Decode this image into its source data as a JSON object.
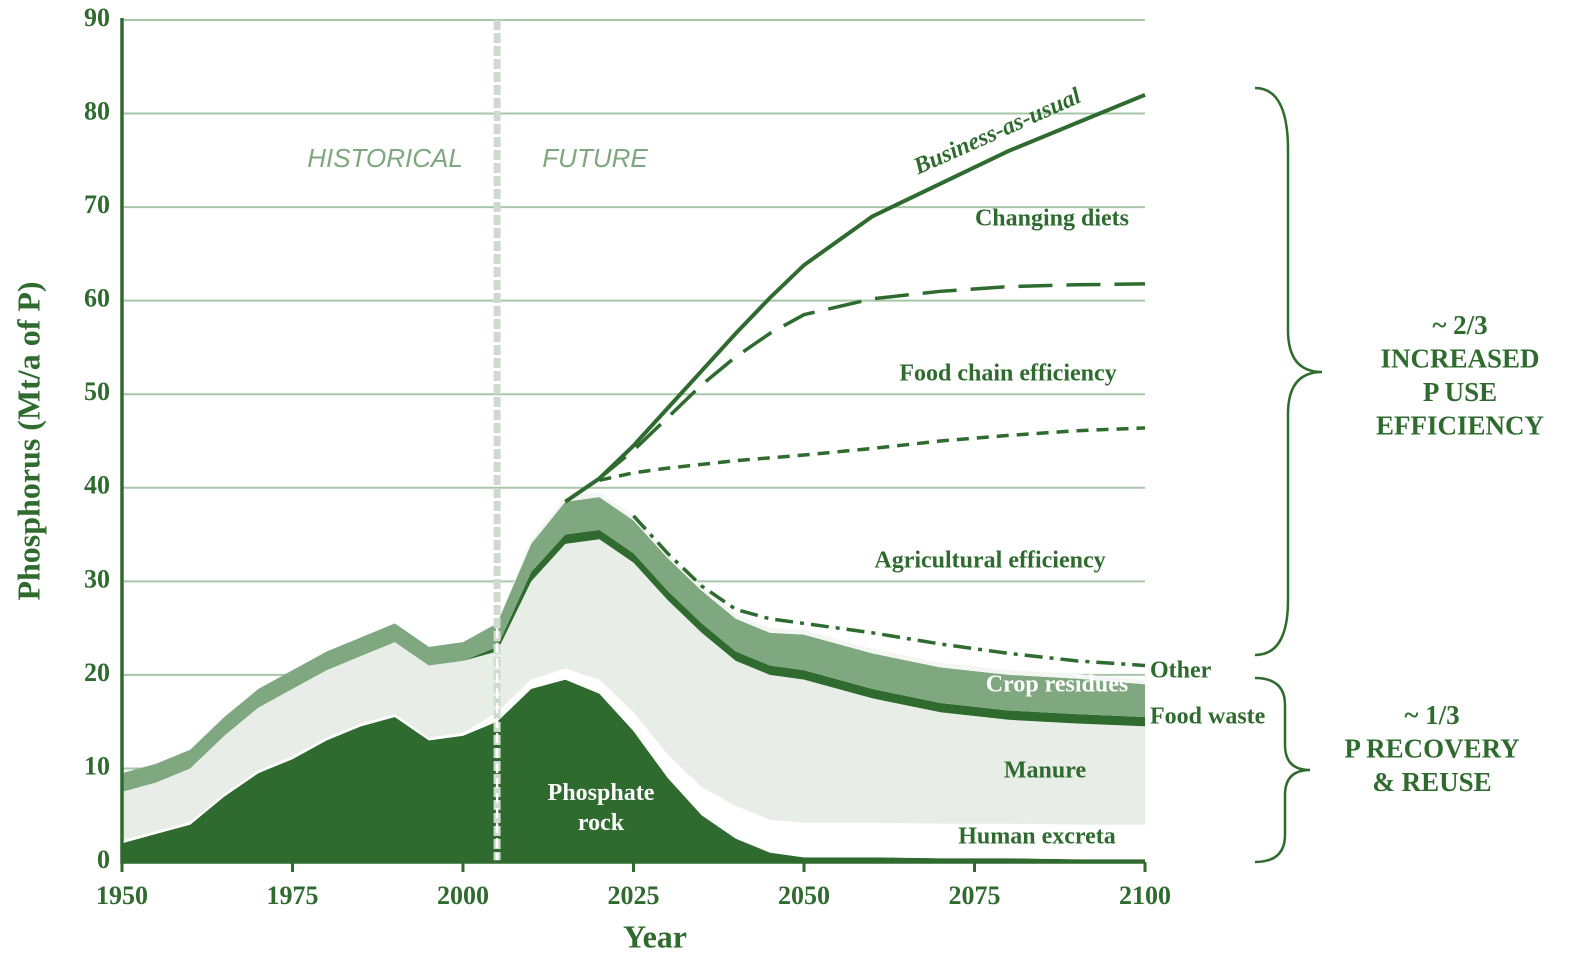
{
  "chart_data": {
    "type": "stacked_area",
    "xlabel": "Year",
    "ylabel": "Phosphorus  (Mt/a of P)",
    "xlim": [
      1950,
      2100
    ],
    "xticks": [
      1950,
      1975,
      2000,
      2025,
      2050,
      2075,
      2100
    ],
    "ylim": [
      0,
      90
    ],
    "yticks": [
      0,
      10,
      20,
      30,
      40,
      50,
      60,
      70,
      80,
      90
    ],
    "grid": true,
    "divider_x": 2005,
    "eras": [
      "HISTORICAL",
      "FUTURE"
    ],
    "x": [
      1950,
      1955,
      1960,
      1965,
      1970,
      1975,
      1980,
      1985,
      1990,
      1995,
      2000,
      2005,
      2010,
      2015,
      2020,
      2025,
      2030,
      2035,
      2040,
      2045,
      2050,
      2060,
      2070,
      2080,
      2090,
      2100
    ],
    "series": [
      {
        "name": "Phosphate rock",
        "color": "#2f6b2f",
        "values": [
          2,
          3,
          4,
          7,
          9.5,
          11,
          13,
          14.5,
          15.5,
          13,
          13.5,
          15,
          18.5,
          19.5,
          18,
          14,
          9,
          5,
          2.5,
          1,
          0.5,
          0.5,
          0.4,
          0.4,
          0.3,
          0.3
        ]
      },
      {
        "name": "Human excreta",
        "color": "#ffffff",
        "values": [
          0.3,
          0.3,
          0.3,
          0.3,
          0.3,
          0.3,
          0.3,
          0.3,
          0.3,
          0.3,
          0.3,
          1,
          1,
          1.2,
          1.5,
          2,
          2.5,
          3,
          3.5,
          3.5,
          3.7,
          3.7,
          3.7,
          3.7,
          3.7,
          3.7
        ]
      },
      {
        "name": "Manure",
        "color": "#e8eee7",
        "values": [
          5.2,
          5.2,
          5.7,
          6.2,
          6.7,
          7.2,
          7.2,
          7.2,
          7.7,
          7.7,
          7.7,
          6.5,
          10.5,
          13.3,
          15,
          16,
          16.5,
          16.5,
          15.5,
          15.5,
          15.3,
          13.3,
          11.9,
          11.1,
          10.8,
          10.5
        ]
      },
      {
        "name": "Food waste",
        "color": "#2f6b2f",
        "values": [
          0,
          0,
          0,
          0,
          0,
          0,
          0,
          0,
          0,
          0,
          0,
          0.5,
          1,
          1,
          1,
          1,
          1,
          1,
          1,
          1,
          1,
          1,
          1,
          1,
          1,
          1
        ]
      },
      {
        "name": "Crop residues",
        "color": "#80a880",
        "values": [
          2,
          2,
          2,
          2,
          2,
          2,
          2,
          2,
          2,
          2,
          2,
          2.5,
          3,
          3.5,
          3.5,
          3.5,
          3.5,
          3.5,
          3.5,
          3.5,
          3.8,
          3.8,
          3.8,
          3.8,
          3.8,
          3.5
        ]
      },
      {
        "name": "Other",
        "color": "#f3f6f2",
        "values": [
          0,
          0,
          0,
          0,
          0,
          0,
          0,
          0,
          0,
          0,
          0,
          0,
          0.5,
          0.5,
          0.5,
          0.5,
          0.5,
          0.5,
          0.5,
          0.5,
          0.5,
          0.5,
          0.5,
          0.5,
          0.5,
          0.5
        ]
      }
    ],
    "lines": [
      {
        "name": "Business-as-usual",
        "color": "#2f6b2f",
        "dash": "solid",
        "values": [
          null,
          null,
          null,
          null,
          null,
          null,
          null,
          null,
          null,
          null,
          null,
          null,
          null,
          38.5,
          41,
          44.5,
          48.5,
          52.5,
          56.5,
          60.3,
          63.8,
          69,
          72.5,
          76,
          79,
          82
        ]
      },
      {
        "color": "#2f6b2f",
        "dash": "long",
        "values": [
          null,
          null,
          null,
          null,
          null,
          null,
          null,
          null,
          null,
          null,
          null,
          null,
          null,
          null,
          41,
          44,
          47.5,
          51,
          54,
          56.5,
          58.5,
          60.2,
          61,
          61.5,
          61.7,
          61.8
        ]
      },
      {
        "color": "#2f6b2f",
        "dash": "short",
        "values": [
          null,
          null,
          null,
          null,
          null,
          null,
          null,
          null,
          null,
          null,
          null,
          null,
          null,
          null,
          40.8,
          41.6,
          42.1,
          42.5,
          42.9,
          43.2,
          43.5,
          44.2,
          45,
          45.6,
          46.1,
          46.4
        ]
      },
      {
        "color": "#2f6b2f",
        "dash": "dashdot",
        "values": [
          null,
          null,
          null,
          null,
          null,
          null,
          null,
          null,
          null,
          null,
          null,
          null,
          null,
          null,
          null,
          37,
          33,
          29.5,
          27,
          26,
          25.5,
          24.5,
          23.3,
          22.3,
          21.5,
          21
        ]
      }
    ],
    "region_labels": [
      "Changing diets",
      "Food chain efficiency",
      "Agricultural efficiency"
    ],
    "braces": [
      {
        "lines": [
          "~ 2/3",
          "INCREASED",
          "P USE",
          "EFFICIENCY"
        ]
      },
      {
        "lines": [
          "~ 1/3",
          "P  RECOVERY",
          "& REUSE"
        ]
      }
    ]
  }
}
